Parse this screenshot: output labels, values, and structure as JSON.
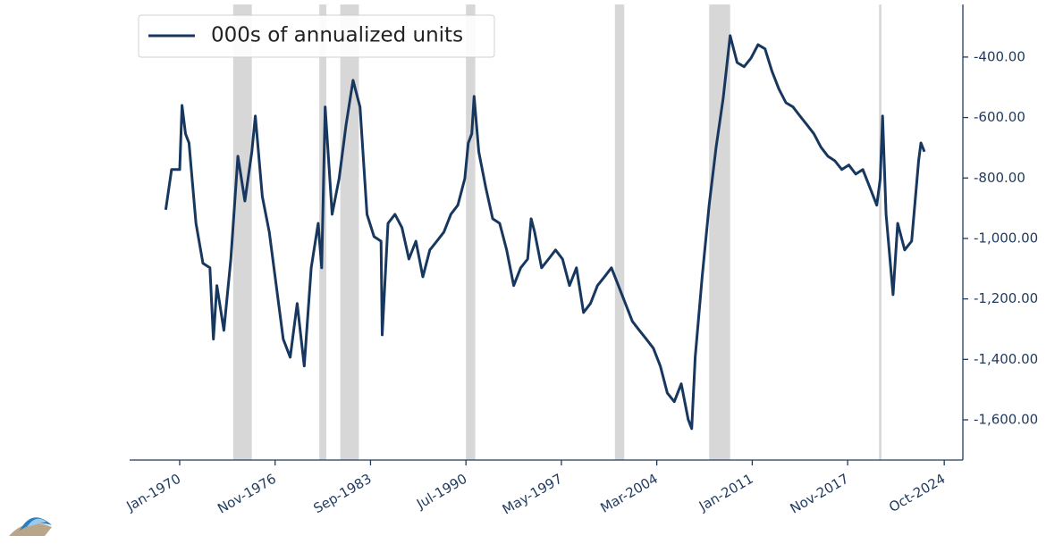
{
  "chart_data": {
    "type": "line",
    "series": [
      {
        "name": "000s of annualized units",
        "color": "#17375e",
        "x": [
          "1969-01",
          "1969-06",
          "1970-01",
          "1970-03",
          "1970-06",
          "1970-09",
          "1971-03",
          "1971-09",
          "1972-03",
          "1972-06",
          "1972-09",
          "1973-03",
          "1973-09",
          "1974-03",
          "1974-09",
          "1975-03",
          "1975-06",
          "1975-12",
          "1976-06",
          "1976-12",
          "1977-06",
          "1977-12",
          "1978-06",
          "1978-12",
          "1979-06",
          "1979-12",
          "1980-03",
          "1980-06",
          "1980-12",
          "1981-06",
          "1981-12",
          "1982-06",
          "1982-12",
          "1983-03",
          "1983-06",
          "1983-12",
          "1984-06",
          "1984-07",
          "1984-12",
          "1985-06",
          "1985-12",
          "1986-06",
          "1986-12",
          "1987-06",
          "1987-12",
          "1988-06",
          "1988-12",
          "1989-06",
          "1989-12",
          "1990-06",
          "1990-09",
          "1990-12",
          "1991-02",
          "1991-06",
          "1991-12",
          "1992-06",
          "1992-12",
          "1993-06",
          "1993-12",
          "1994-06",
          "1994-12",
          "1995-03",
          "1995-06",
          "1995-12",
          "1996-06",
          "1996-12",
          "1997-06",
          "1997-12",
          "1998-06",
          "1998-12",
          "1999-06",
          "1999-12",
          "2000-06",
          "2000-12",
          "2001-06",
          "2001-12",
          "2002-06",
          "2002-12",
          "2003-06",
          "2003-12",
          "2004-06",
          "2004-12",
          "2005-06",
          "2005-12",
          "2006-06",
          "2006-09",
          "2006-12",
          "2007-06",
          "2007-12",
          "2008-06",
          "2008-12",
          "2009-06",
          "2009-12",
          "2010-06",
          "2010-12",
          "2011-06",
          "2011-12",
          "2012-06",
          "2012-12",
          "2013-06",
          "2013-12",
          "2014-06",
          "2014-12",
          "2015-06",
          "2015-12",
          "2016-06",
          "2016-12",
          "2017-06",
          "2017-12",
          "2018-06",
          "2018-12",
          "2019-06",
          "2019-12",
          "2020-03",
          "2020-05",
          "2020-08",
          "2020-12",
          "2021-02",
          "2021-06",
          "2021-12",
          "2022-06",
          "2022-12",
          "2023-02",
          "2023-05"
        ],
        "values": [
          -905,
          -772,
          -772,
          -560,
          -654,
          -684,
          -950,
          -1082,
          -1097,
          -1333,
          -1156,
          -1304,
          -1068,
          -728,
          -876,
          -713,
          -595,
          -861,
          -979,
          -1156,
          -1333,
          -1393,
          -1215,
          -1422,
          -1097,
          -950,
          -1097,
          -565,
          -920,
          -802,
          -624,
          -477,
          -565,
          -743,
          -920,
          -994,
          -1009,
          -1319,
          -950,
          -920,
          -964,
          -1068,
          -1009,
          -1127,
          -1038,
          -1009,
          -979,
          -920,
          -890,
          -802,
          -684,
          -654,
          -530,
          -713,
          -831,
          -935,
          -950,
          -1038,
          -1156,
          -1097,
          -1068,
          -935,
          -979,
          -1097,
          -1068,
          -1038,
          -1068,
          -1156,
          -1097,
          -1245,
          -1215,
          -1156,
          -1127,
          -1097,
          -1156,
          -1215,
          -1274,
          -1304,
          -1333,
          -1363,
          -1422,
          -1511,
          -1540,
          -1481,
          -1599,
          -1629,
          -1393,
          -1127,
          -890,
          -698,
          -536,
          -329,
          -418,
          -432,
          -403,
          -359,
          -373,
          -447,
          -506,
          -551,
          -565,
          -595,
          -624,
          -654,
          -698,
          -728,
          -743,
          -772,
          -757,
          -787,
          -772,
          -831,
          -890,
          -802,
          -595,
          -920,
          -1097,
          -1186,
          -950,
          -1038,
          -1009,
          -743,
          -684,
          -713
        ]
      }
    ],
    "shaded_periods": [
      [
        "1973-11",
        "1975-03"
      ],
      [
        "1980-01",
        "1980-07"
      ],
      [
        "1981-07",
        "1982-11"
      ],
      [
        "1990-07",
        "1991-03"
      ],
      [
        "2001-03",
        "2001-11"
      ],
      [
        "2007-12",
        "2009-06"
      ],
      [
        "2020-02",
        "2020-04"
      ]
    ],
    "shade_color": "#d3d3d3",
    "xlim": [
      "1966-06",
      "2026-02"
    ],
    "xticks": [
      {
        "value": "1970-01",
        "label": "Jan-1970"
      },
      {
        "value": "1976-11",
        "label": "Nov-1976"
      },
      {
        "value": "1983-09",
        "label": "Sep-1983"
      },
      {
        "value": "1990-07",
        "label": "Jul-1990"
      },
      {
        "value": "1997-05",
        "label": "May-1997"
      },
      {
        "value": "2004-03",
        "label": "Mar-2004"
      },
      {
        "value": "2011-01",
        "label": "Jan-2011"
      },
      {
        "value": "2017-11",
        "label": "Nov-2017"
      },
      {
        "value": "2024-10",
        "label": "Oct-2024"
      }
    ],
    "ylim": [
      -1733,
      -226
    ],
    "yticks": [
      {
        "value": -400,
        "label": "-400.00"
      },
      {
        "value": -600,
        "label": "-600.00"
      },
      {
        "value": -800,
        "label": "-800.00"
      },
      {
        "value": -1000,
        "label": "-1,000.00"
      },
      {
        "value": -1200,
        "label": "-1,200.00"
      },
      {
        "value": -1400,
        "label": "-1,400.00"
      },
      {
        "value": -1600,
        "label": "-1,600.00"
      }
    ],
    "legend": "upper left"
  }
}
